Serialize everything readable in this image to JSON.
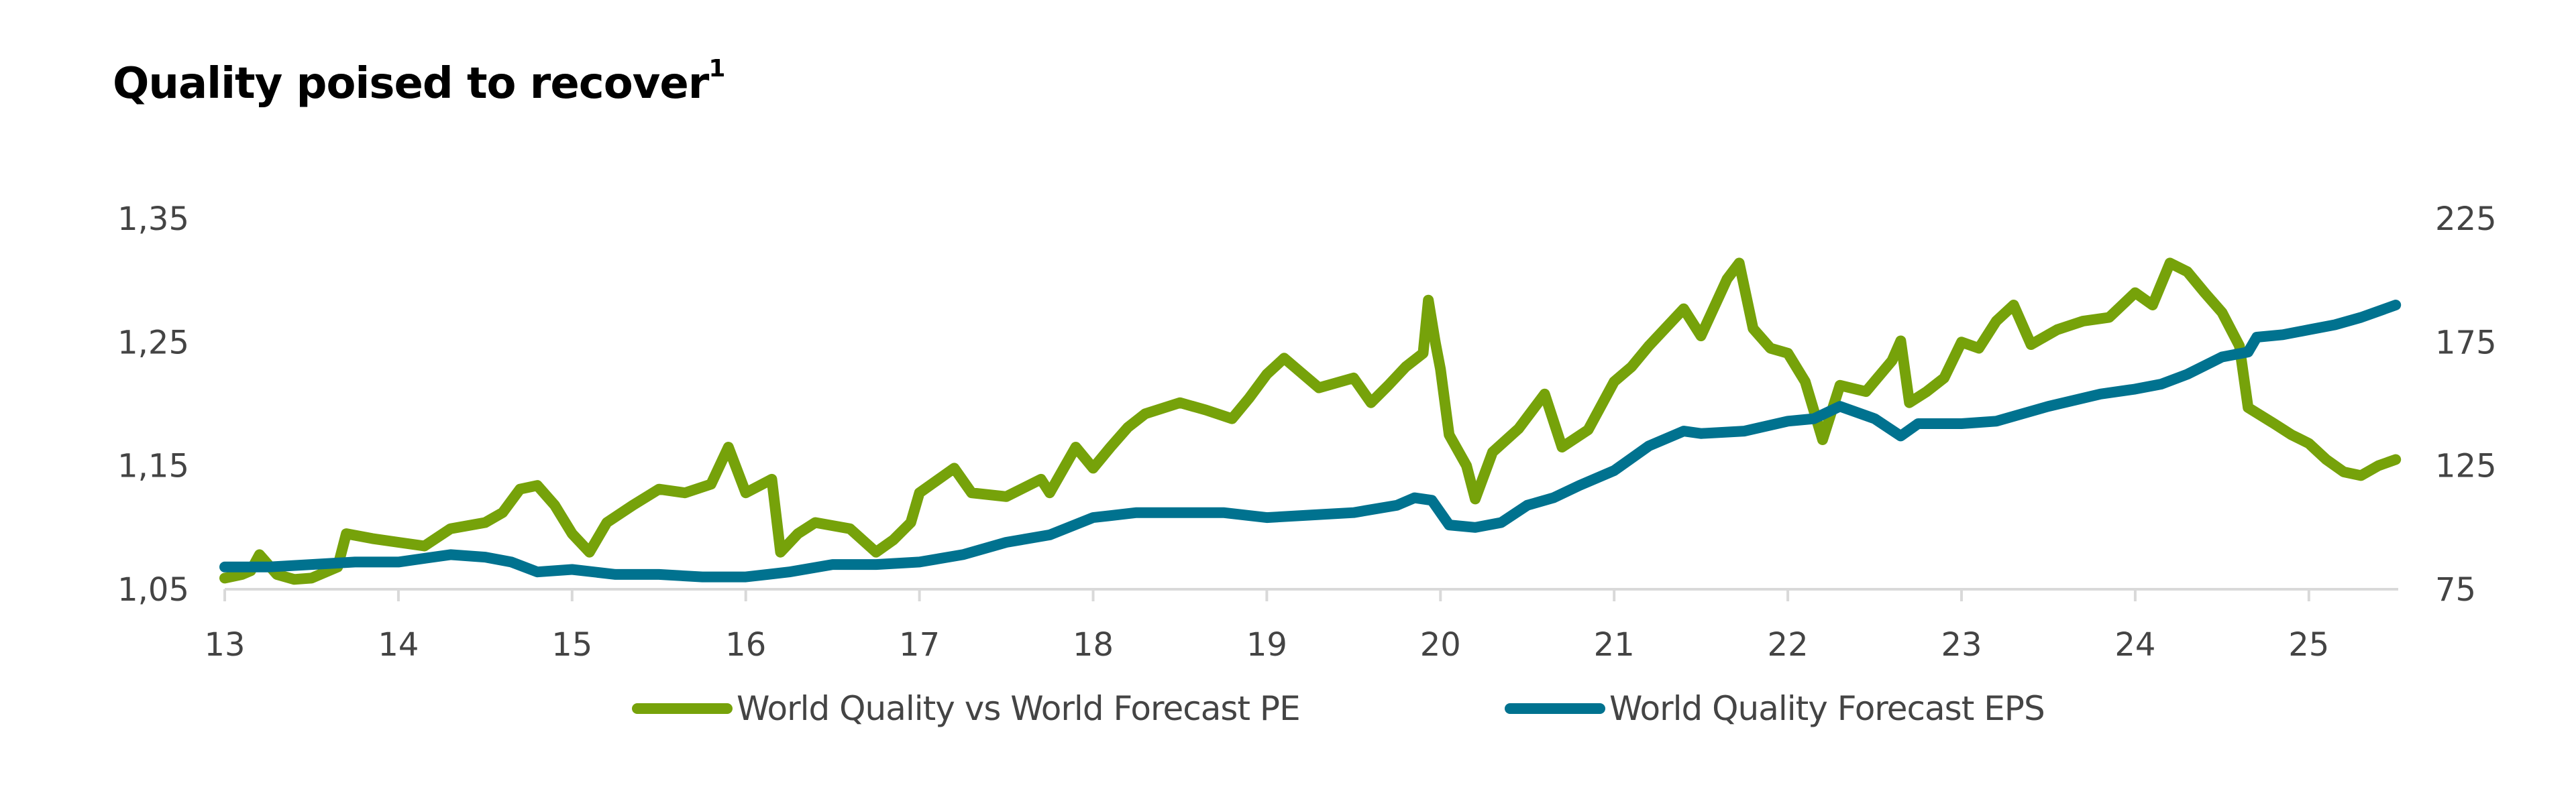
{
  "title": {
    "text": "Quality poised to recover",
    "footnote_mark": "1"
  },
  "colors": {
    "green": "#76A20A",
    "teal": "#00728F",
    "axis": "#D9D9D9",
    "text": "#444444"
  },
  "legend": [
    {
      "label": "World Quality vs World Forecast PE",
      "color": "#76A20A"
    },
    {
      "label": "World Quality Forecast EPS",
      "color": "#00728F"
    }
  ],
  "chart_data": {
    "type": "line",
    "title": "Quality poised to recover",
    "xlabel": "",
    "ylabel_left": "",
    "ylabel_right": "",
    "x_ticks": [
      "13",
      "14",
      "15",
      "16",
      "17",
      "18",
      "19",
      "20",
      "21",
      "22",
      "23",
      "24",
      "25"
    ],
    "x_range": [
      13,
      25.52
    ],
    "y_left": {
      "range": [
        1.05,
        1.35
      ],
      "ticks": [
        "1,05",
        "1,15",
        "1,25",
        "1,35"
      ],
      "tick_values": [
        1.05,
        1.15,
        1.25,
        1.35
      ]
    },
    "y_right": {
      "range": [
        75,
        225
      ],
      "ticks": [
        "75",
        "125",
        "175",
        "225"
      ],
      "tick_values": [
        75,
        125,
        175,
        225
      ]
    },
    "grid": false,
    "legend_position": "bottom",
    "series": [
      {
        "name": "World Quality vs World Forecast PE",
        "axis": "left",
        "color": "#76A20A",
        "points": [
          [
            13.0,
            1.059
          ],
          [
            13.1,
            1.062
          ],
          [
            13.15,
            1.065
          ],
          [
            13.2,
            1.078
          ],
          [
            13.3,
            1.062
          ],
          [
            13.4,
            1.058
          ],
          [
            13.5,
            1.059
          ],
          [
            13.65,
            1.068
          ],
          [
            13.7,
            1.095
          ],
          [
            13.85,
            1.091
          ],
          [
            14.0,
            1.088
          ],
          [
            14.15,
            1.085
          ],
          [
            14.3,
            1.099
          ],
          [
            14.5,
            1.104
          ],
          [
            14.6,
            1.112
          ],
          [
            14.7,
            1.131
          ],
          [
            14.8,
            1.134
          ],
          [
            14.9,
            1.118
          ],
          [
            15.0,
            1.095
          ],
          [
            15.1,
            1.08
          ],
          [
            15.2,
            1.104
          ],
          [
            15.35,
            1.118
          ],
          [
            15.5,
            1.131
          ],
          [
            15.65,
            1.128
          ],
          [
            15.8,
            1.135
          ],
          [
            15.9,
            1.165
          ],
          [
            16.0,
            1.128
          ],
          [
            16.15,
            1.139
          ],
          [
            16.2,
            1.08
          ],
          [
            16.3,
            1.095
          ],
          [
            16.4,
            1.104
          ],
          [
            16.6,
            1.099
          ],
          [
            16.75,
            1.08
          ],
          [
            16.85,
            1.09
          ],
          [
            16.95,
            1.104
          ],
          [
            17.0,
            1.128
          ],
          [
            17.2,
            1.148
          ],
          [
            17.3,
            1.128
          ],
          [
            17.5,
            1.125
          ],
          [
            17.7,
            1.139
          ],
          [
            17.75,
            1.128
          ],
          [
            17.9,
            1.165
          ],
          [
            18.0,
            1.148
          ],
          [
            18.1,
            1.165
          ],
          [
            18.2,
            1.181
          ],
          [
            18.3,
            1.192
          ],
          [
            18.5,
            1.201
          ],
          [
            18.65,
            1.195
          ],
          [
            18.8,
            1.188
          ],
          [
            18.9,
            1.205
          ],
          [
            19.0,
            1.224
          ],
          [
            19.1,
            1.237
          ],
          [
            19.2,
            1.225
          ],
          [
            19.3,
            1.213
          ],
          [
            19.5,
            1.221
          ],
          [
            19.6,
            1.201
          ],
          [
            19.7,
            1.215
          ],
          [
            19.8,
            1.23
          ],
          [
            19.9,
            1.241
          ],
          [
            19.93,
            1.284
          ],
          [
            19.97,
            1.25
          ],
          [
            20.0,
            1.228
          ],
          [
            20.05,
            1.175
          ],
          [
            20.15,
            1.15
          ],
          [
            20.2,
            1.123
          ],
          [
            20.3,
            1.161
          ],
          [
            20.45,
            1.18
          ],
          [
            20.6,
            1.208
          ],
          [
            20.7,
            1.165
          ],
          [
            20.85,
            1.179
          ],
          [
            21.0,
            1.218
          ],
          [
            21.1,
            1.23
          ],
          [
            21.2,
            1.247
          ],
          [
            21.4,
            1.277
          ],
          [
            21.5,
            1.255
          ],
          [
            21.65,
            1.301
          ],
          [
            21.72,
            1.314
          ],
          [
            21.8,
            1.261
          ],
          [
            21.9,
            1.245
          ],
          [
            22.0,
            1.241
          ],
          [
            22.1,
            1.218
          ],
          [
            22.2,
            1.171
          ],
          [
            22.3,
            1.215
          ],
          [
            22.45,
            1.21
          ],
          [
            22.6,
            1.235
          ],
          [
            22.65,
            1.251
          ],
          [
            22.7,
            1.201
          ],
          [
            22.8,
            1.21
          ],
          [
            22.9,
            1.221
          ],
          [
            23.0,
            1.25
          ],
          [
            23.1,
            1.245
          ],
          [
            23.2,
            1.267
          ],
          [
            23.3,
            1.28
          ],
          [
            23.4,
            1.248
          ],
          [
            23.55,
            1.26
          ],
          [
            23.7,
            1.267
          ],
          [
            23.85,
            1.27
          ],
          [
            24.0,
            1.29
          ],
          [
            24.1,
            1.28
          ],
          [
            24.2,
            1.314
          ],
          [
            24.3,
            1.307
          ],
          [
            24.4,
            1.29
          ],
          [
            24.5,
            1.274
          ],
          [
            24.6,
            1.247
          ],
          [
            24.65,
            1.197
          ],
          [
            24.8,
            1.184
          ],
          [
            24.9,
            1.175
          ],
          [
            25.0,
            1.168
          ],
          [
            25.1,
            1.155
          ],
          [
            25.2,
            1.145
          ],
          [
            25.3,
            1.142
          ],
          [
            25.4,
            1.15
          ],
          [
            25.5,
            1.155
          ]
        ]
      },
      {
        "name": "World Quality Forecast EPS",
        "axis": "right",
        "color": "#00728F",
        "points": [
          [
            13.0,
            84
          ],
          [
            13.25,
            84
          ],
          [
            13.5,
            85
          ],
          [
            13.75,
            86
          ],
          [
            14.0,
            86
          ],
          [
            14.3,
            89
          ],
          [
            14.5,
            88
          ],
          [
            14.65,
            86
          ],
          [
            14.8,
            82
          ],
          [
            15.0,
            83
          ],
          [
            15.25,
            81
          ],
          [
            15.5,
            81
          ],
          [
            15.75,
            80
          ],
          [
            16.0,
            80
          ],
          [
            16.25,
            82
          ],
          [
            16.5,
            85
          ],
          [
            16.75,
            85
          ],
          [
            17.0,
            86
          ],
          [
            17.25,
            89
          ],
          [
            17.5,
            94
          ],
          [
            17.75,
            97
          ],
          [
            18.0,
            104
          ],
          [
            18.25,
            106
          ],
          [
            18.5,
            106
          ],
          [
            18.75,
            106
          ],
          [
            19.0,
            104
          ],
          [
            19.25,
            105
          ],
          [
            19.5,
            106
          ],
          [
            19.75,
            109
          ],
          [
            19.85,
            112
          ],
          [
            19.95,
            111
          ],
          [
            20.05,
            101
          ],
          [
            20.2,
            100
          ],
          [
            20.35,
            102
          ],
          [
            20.5,
            109
          ],
          [
            20.65,
            112
          ],
          [
            20.8,
            117
          ],
          [
            21.0,
            123
          ],
          [
            21.2,
            133
          ],
          [
            21.4,
            139
          ],
          [
            21.5,
            138
          ],
          [
            21.75,
            139
          ],
          [
            22.0,
            143
          ],
          [
            22.15,
            144
          ],
          [
            22.3,
            149
          ],
          [
            22.5,
            144
          ],
          [
            22.65,
            137
          ],
          [
            22.75,
            142
          ],
          [
            23.0,
            142
          ],
          [
            23.2,
            143
          ],
          [
            23.5,
            149
          ],
          [
            23.8,
            154
          ],
          [
            24.0,
            156
          ],
          [
            24.15,
            158
          ],
          [
            24.3,
            162
          ],
          [
            24.5,
            169
          ],
          [
            24.65,
            171
          ],
          [
            24.7,
            177
          ],
          [
            24.85,
            178
          ],
          [
            25.0,
            180
          ],
          [
            25.15,
            182
          ],
          [
            25.3,
            185
          ],
          [
            25.5,
            190
          ]
        ]
      }
    ]
  }
}
